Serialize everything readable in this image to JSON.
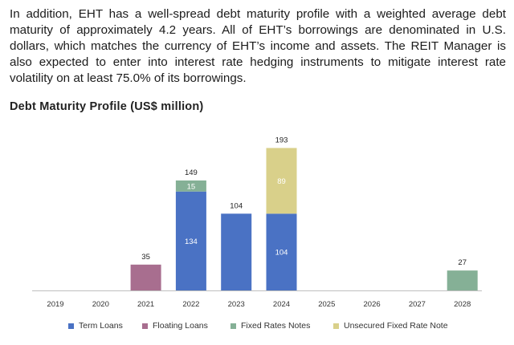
{
  "paragraph": "In addition, EHT has a well-spread debt maturity profile with a weighted average debt maturity of approximately 4.2 years. All of EHT’s borrowings are denominated in U.S. dollars, which matches the currency of EHT’s income and assets. The REIT Manager is also expected to enter into interest rate hedging instruments to mitigate interest rate volatility on at least 75.0% of its borrowings.",
  "chart_data": {
    "type": "bar",
    "stacked": true,
    "title": "Debt Maturity Profile (US$ million)",
    "categories": [
      "2019",
      "2020",
      "2021",
      "2022",
      "2023",
      "2024",
      "2025",
      "2026",
      "2027",
      "2028"
    ],
    "series": [
      {
        "name": "Term Loans",
        "color": "#4a72c4",
        "values": [
          0,
          0,
          0,
          134,
          104,
          104,
          0,
          0,
          0,
          0
        ]
      },
      {
        "name": "Floating Loans",
        "color": "#a86e8f",
        "values": [
          0,
          0,
          35,
          0,
          0,
          0,
          0,
          0,
          0,
          0
        ]
      },
      {
        "name": "Fixed Rates Notes",
        "color": "#85b096",
        "values": [
          0,
          0,
          0,
          15,
          0,
          0,
          0,
          0,
          0,
          27
        ]
      },
      {
        "name": "Unsecured Fixed Rate Note",
        "color": "#d9d08a",
        "values": [
          0,
          0,
          0,
          0,
          0,
          89,
          0,
          0,
          0,
          0
        ]
      }
    ],
    "totals": [
      null,
      null,
      35,
      149,
      104,
      193,
      null,
      null,
      null,
      27
    ],
    "segment_labels_shown_min": 10,
    "ylim": [
      0,
      200
    ],
    "xlabel": "",
    "ylabel": "",
    "grid": false,
    "legend_position": "bottom"
  }
}
